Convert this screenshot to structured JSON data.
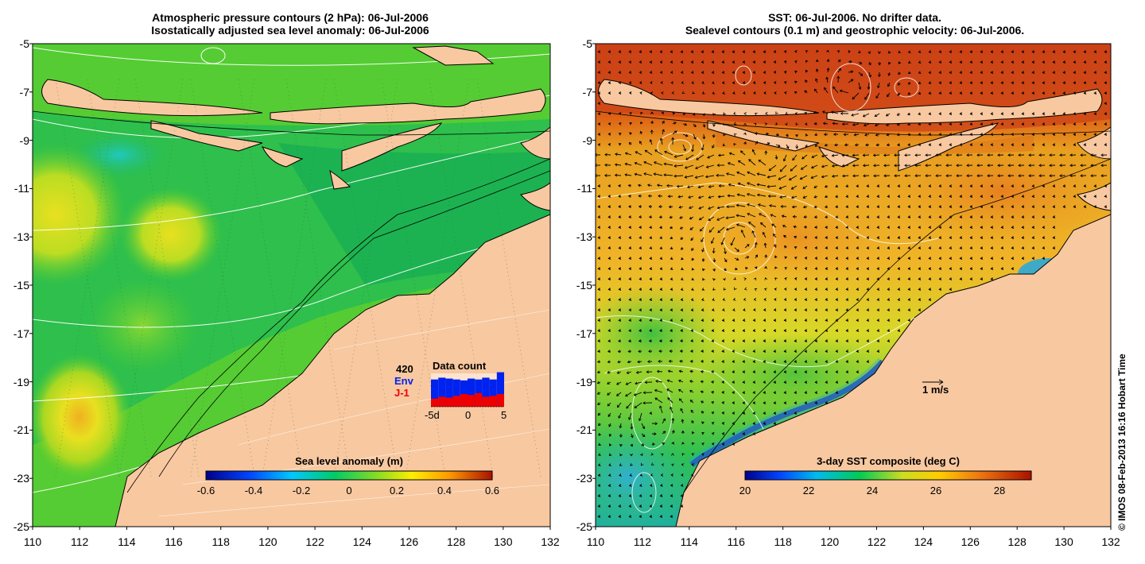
{
  "left_panel": {
    "title_line1": "Atmospheric pressure contours (2 hPa): 06-Jul-2006",
    "title_line2": "Isostatically adjusted sea level anomaly: 06-Jul-2006",
    "colorbar": {
      "label": "Sea level anomaly (m)",
      "ticks": [
        "-0.6",
        "-0.4",
        "-0.2",
        "0",
        "0.2",
        "0.4",
        "0.6"
      ]
    },
    "inset": {
      "title": "Data count",
      "max_label": "420",
      "env_label": "Env",
      "j1_label": "J-1",
      "x_labels": [
        "-5d",
        "0",
        "5"
      ],
      "env_counts": [
        300,
        320,
        310,
        300,
        290,
        310,
        300,
        320,
        300,
        380
      ],
      "j1_counts": [
        90,
        110,
        100,
        120,
        140,
        130,
        150,
        110,
        120,
        140
      ],
      "env_color": "#0022ee",
      "j1_color": "#ee0000"
    }
  },
  "right_panel": {
    "title_line1": "SST: 06-Jul-2006. No drifter data.",
    "title_line2": "Sealevel contours (0.1 m) and geostrophic velocity: 06-Jul-2006.",
    "colorbar": {
      "label": "3-day SST composite (deg C)",
      "ticks": [
        "20",
        "22",
        "24",
        "26",
        "28"
      ]
    },
    "velocity_scale_label": "1 m/s"
  },
  "axes": {
    "lat_ticks": [
      "-5",
      "-7",
      "-9",
      "-11",
      "-13",
      "-15",
      "-17",
      "-19",
      "-21",
      "-23",
      "-25"
    ],
    "lon_ticks": [
      "110",
      "112",
      "114",
      "116",
      "118",
      "120",
      "122",
      "124",
      "126",
      "128",
      "130",
      "132"
    ]
  },
  "credit": "© IMOS 08-Feb-2013 16:16 Hobart Time",
  "colors": {
    "land": "#f8c8a0",
    "sla_base": "#22bb44",
    "sst_warm": "#dd5511",
    "sst_base": "#ee9a22"
  }
}
